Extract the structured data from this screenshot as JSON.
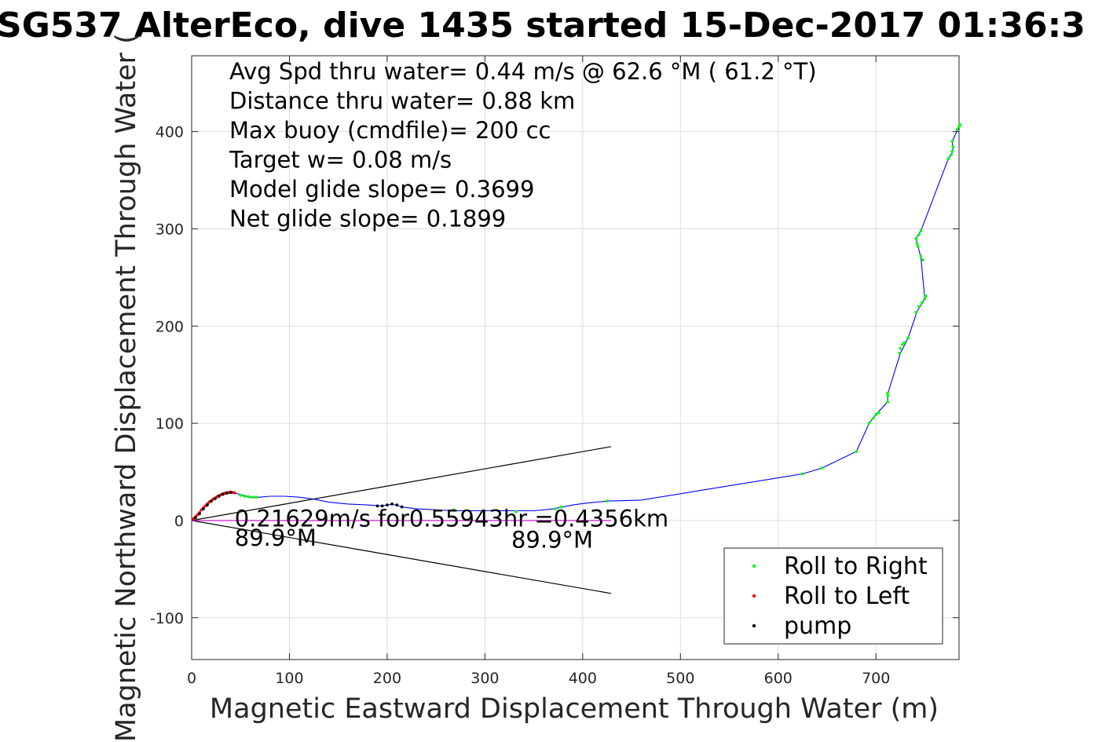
{
  "chart_data": {
    "type": "scatter",
    "title": "SG537 AlterEco, dive 1435 started 15-Dec-2017 01:36:3",
    "xlabel": "Magnetic Eastward Displacement Through Water (m)",
    "ylabel": "Magnetic Northward Displacement Through Water (",
    "xlim": [
      0,
      785
    ],
    "ylim": [
      -143,
      478
    ],
    "xticks": [
      0,
      100,
      200,
      300,
      400,
      500,
      600,
      700
    ],
    "yticks": [
      -100,
      0,
      100,
      200,
      300,
      400
    ],
    "xtick_labels": [
      "0",
      "100",
      "200",
      "300",
      "400",
      "500",
      "600",
      "700"
    ],
    "ytick_labels": [
      "-100",
      "0",
      "100",
      "200",
      "300",
      "400"
    ],
    "grid": true,
    "legend_position": "bottom-right",
    "info_lines": [
      "Avg Spd thru water=  0.44 m/s @  62.6 °M ( 61.2 °T)",
      "Distance thru water=  0.88 km",
      "Max buoy (cmdfile)= 200 cc",
      "Target w= 0.08 m/s",
      "Model glide slope= 0.3699",
      "Net glide slope= 0.1899"
    ],
    "annotations": [
      {
        "text": "0.21629m/s for0.55943hr =0.4356km",
        "x": 44,
        "y": 2
      },
      {
        "text": "89.9°M",
        "x": 44,
        "y": -18
      },
      {
        "text": "89.9°M",
        "x": 327,
        "y": -20
      }
    ],
    "cone_lines": [
      {
        "from": [
          0,
          0
        ],
        "to": [
          429,
          76
        ]
      },
      {
        "from": [
          0,
          0
        ],
        "to": [
          429,
          -75
        ]
      },
      {
        "from": [
          0,
          0
        ],
        "to": [
          429,
          0
        ]
      }
    ],
    "track": [
      [
        0,
        0
      ],
      [
        5,
        5
      ],
      [
        10,
        11
      ],
      [
        15,
        16
      ],
      [
        20,
        20
      ],
      [
        25,
        24
      ],
      [
        30,
        27
      ],
      [
        35,
        28.5
      ],
      [
        40,
        29
      ],
      [
        45,
        28
      ],
      [
        52,
        26
      ],
      [
        60,
        24
      ],
      [
        70,
        24
      ],
      [
        80,
        25
      ],
      [
        95,
        25
      ],
      [
        110,
        24
      ],
      [
        125,
        22
      ],
      [
        140,
        19
      ],
      [
        160,
        17
      ],
      [
        180,
        16
      ],
      [
        195,
        15
      ],
      [
        205,
        17
      ],
      [
        215,
        14
      ],
      [
        230,
        12
      ],
      [
        250,
        11
      ],
      [
        270,
        10
      ],
      [
        290,
        10
      ],
      [
        310,
        10
      ],
      [
        330,
        10
      ],
      [
        350,
        10
      ],
      [
        370,
        12
      ],
      [
        390,
        16
      ],
      [
        405,
        18
      ],
      [
        425,
        20
      ],
      [
        460,
        21
      ],
      [
        625,
        48
      ],
      [
        645,
        54
      ],
      [
        680,
        71
      ],
      [
        693,
        100
      ],
      [
        700,
        109
      ],
      [
        712,
        122
      ],
      [
        712,
        130
      ],
      [
        725,
        172
      ],
      [
        733,
        188
      ],
      [
        742,
        215
      ],
      [
        750,
        228
      ],
      [
        746,
        270
      ],
      [
        741,
        290
      ],
      [
        746,
        298
      ],
      [
        774,
        372
      ],
      [
        779,
        380
      ],
      [
        778,
        390
      ],
      [
        785,
        405
      ]
    ],
    "series": [
      {
        "name": "Roll to Right",
        "color": "#00ff00",
        "points": [
          [
            50,
            26
          ],
          [
            54,
            25
          ],
          [
            58,
            24.5
          ],
          [
            62,
            24
          ],
          [
            66,
            24
          ],
          [
            268,
            11
          ],
          [
            298,
            10
          ],
          [
            332,
            9
          ],
          [
            372,
            12
          ],
          [
            378,
            14
          ],
          [
            425,
            20
          ],
          [
            625,
            48
          ],
          [
            645,
            54
          ],
          [
            680,
            71
          ],
          [
            693,
            100
          ],
          [
            697,
            105
          ],
          [
            700,
            109
          ],
          [
            703,
            111
          ],
          [
            712,
            122
          ],
          [
            712,
            128
          ],
          [
            712,
            131
          ],
          [
            724,
            172
          ],
          [
            725,
            177
          ],
          [
            727,
            181
          ],
          [
            729,
            183
          ],
          [
            733,
            188
          ],
          [
            741,
            214
          ],
          [
            744,
            220
          ],
          [
            747,
            224
          ],
          [
            750,
            228
          ],
          [
            751,
            231
          ],
          [
            748,
            268
          ],
          [
            746,
            272
          ],
          [
            743,
            282
          ],
          [
            742,
            285
          ],
          [
            741,
            290
          ],
          [
            744,
            294
          ],
          [
            746,
            298
          ],
          [
            774,
            372
          ],
          [
            777,
            376
          ],
          [
            778,
            380
          ],
          [
            779,
            384
          ],
          [
            778,
            390
          ],
          [
            783,
            402
          ],
          [
            785,
            405
          ],
          [
            786,
            407
          ]
        ]
      },
      {
        "name": "Roll to Left",
        "color": "#ff0000",
        "points": [
          [
            2,
            2
          ],
          [
            4,
            4
          ],
          [
            6,
            6
          ],
          [
            8,
            8
          ],
          [
            10,
            11
          ],
          [
            12,
            13
          ],
          [
            14,
            15
          ],
          [
            16,
            17
          ],
          [
            18,
            19
          ],
          [
            20,
            20
          ],
          [
            22,
            22
          ],
          [
            24,
            23
          ],
          [
            26,
            24.5
          ],
          [
            28,
            25.5
          ],
          [
            30,
            26.5
          ],
          [
            32,
            27.5
          ],
          [
            34,
            28
          ],
          [
            36,
            28.5
          ],
          [
            38,
            28.8
          ],
          [
            40,
            29
          ],
          [
            42,
            28.8
          ],
          [
            44,
            28.5
          ]
        ]
      },
      {
        "name": "pump",
        "color": "#000000",
        "points": [
          [
            4,
            3
          ],
          [
            8,
            7
          ],
          [
            12,
            12
          ],
          [
            16,
            16
          ],
          [
            20,
            20
          ],
          [
            24,
            22.5
          ],
          [
            28,
            25
          ],
          [
            32,
            27
          ],
          [
            36,
            28.2
          ],
          [
            40,
            29
          ],
          [
            190,
            15
          ],
          [
            195,
            15
          ],
          [
            200,
            16
          ],
          [
            205,
            17
          ],
          [
            210,
            16
          ],
          [
            215,
            14
          ]
        ]
      }
    ],
    "horizontal_magenta_track": [
      [
        0,
        0
      ],
      [
        429,
        0
      ]
    ]
  }
}
